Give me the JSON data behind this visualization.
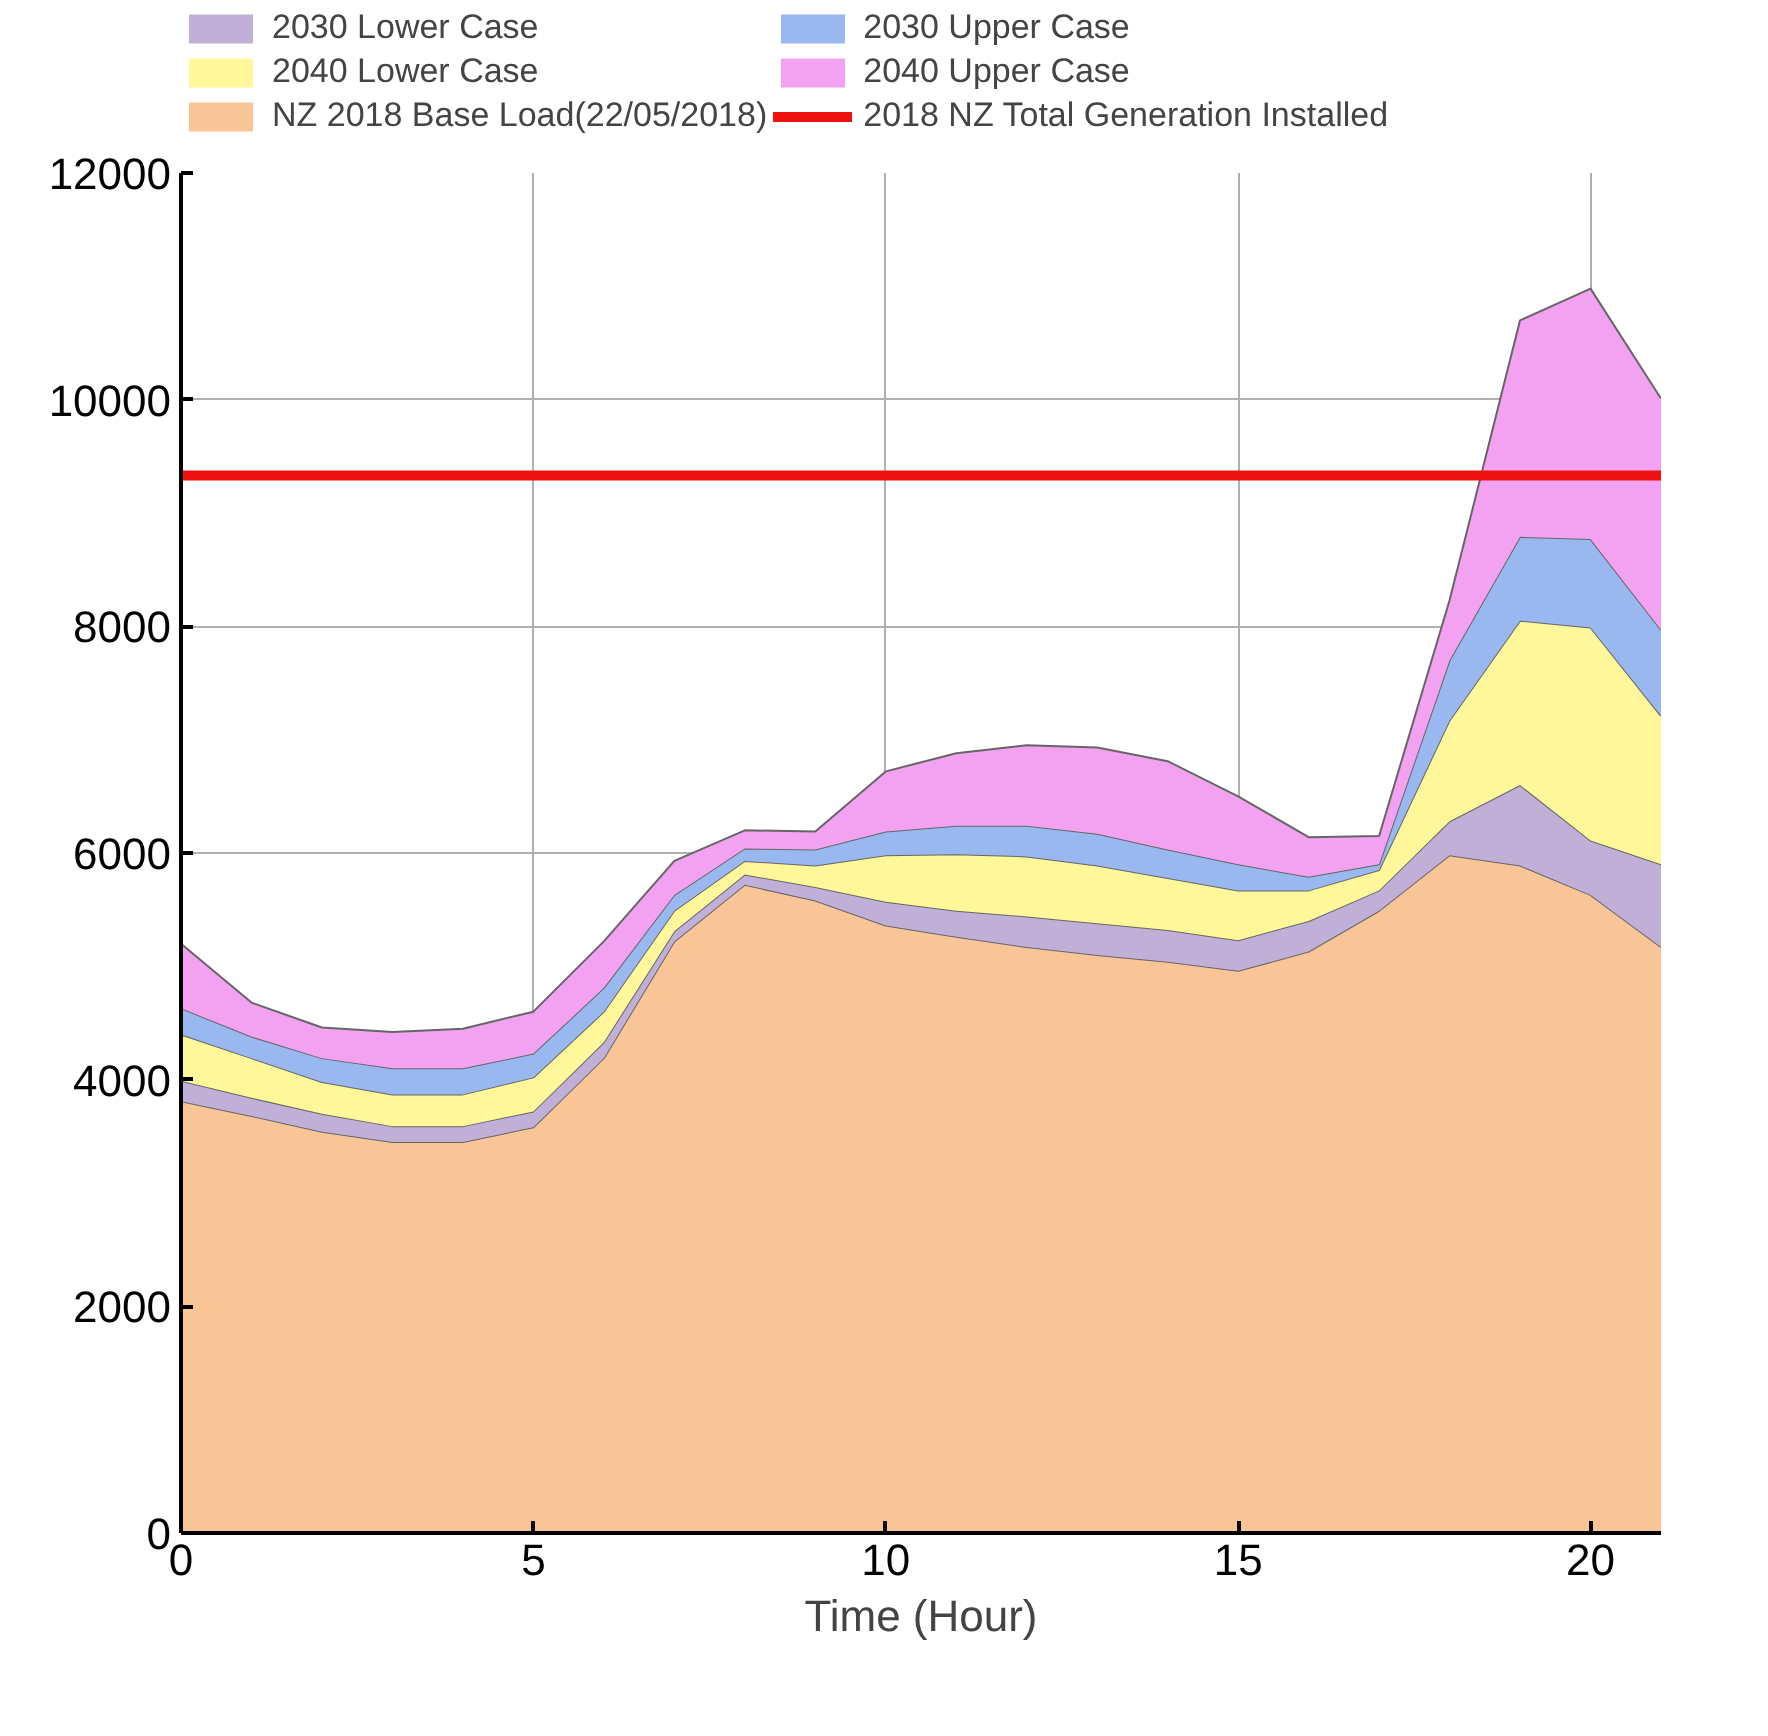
{
  "chart_data": {
    "type": "area",
    "stacked": true,
    "xlabel": "Time (Hour)",
    "x": [
      0,
      1,
      2,
      3,
      4,
      5,
      6,
      7,
      8,
      9,
      10,
      11,
      12,
      13,
      14,
      15,
      16,
      17,
      18,
      19,
      20,
      21
    ],
    "xlim": [
      0,
      21
    ],
    "xticks": [
      0,
      5,
      10,
      15,
      20
    ],
    "ylim": [
      0,
      12000
    ],
    "yticks": [
      0,
      2000,
      4000,
      6000,
      8000,
      10000,
      12000
    ],
    "grid": true,
    "legend": "top",
    "series": [
      {
        "name": "NZ 2018 Base Load(22/05/2018)",
        "color": "#f9c597",
        "values": [
          3810,
          3680,
          3540,
          3450,
          3450,
          3580,
          4190,
          5220,
          5720,
          5580,
          5360,
          5260,
          5170,
          5100,
          5040,
          4960,
          5130,
          5490,
          5980,
          5890,
          5630,
          5170
        ]
      },
      {
        "name": "2030 Lower Case",
        "color": "#c0b0d8",
        "values": [
          180,
          160,
          160,
          140,
          140,
          140,
          140,
          90,
          90,
          120,
          210,
          230,
          270,
          280,
          280,
          270,
          270,
          180,
          300,
          710,
          480,
          730
        ]
      },
      {
        "name": "2040 Lower Case",
        "color": "#fff79a",
        "values": [
          410,
          350,
          280,
          280,
          280,
          300,
          270,
          180,
          120,
          190,
          410,
          500,
          530,
          510,
          460,
          440,
          270,
          180,
          890,
          1450,
          1880,
          1310
        ]
      },
      {
        "name": "2030 Upper Case",
        "color": "#99b8f0",
        "values": [
          230,
          190,
          210,
          230,
          230,
          210,
          210,
          140,
          110,
          140,
          210,
          250,
          270,
          280,
          250,
          230,
          120,
          50,
          530,
          740,
          780,
          760
        ]
      },
      {
        "name": "2040 Upper Case",
        "color": "#f2a2f0",
        "values": [
          570,
          300,
          270,
          320,
          350,
          370,
          410,
          300,
          160,
          160,
          530,
          640,
          710,
          760,
          780,
          600,
          350,
          250,
          530,
          1910,
          2210,
          2040
        ]
      }
    ],
    "ref_lines": [
      {
        "axis": "y",
        "value": 9330,
        "label": "2018 NZ Total Generation Installed",
        "color": "#ee1111"
      }
    ]
  }
}
